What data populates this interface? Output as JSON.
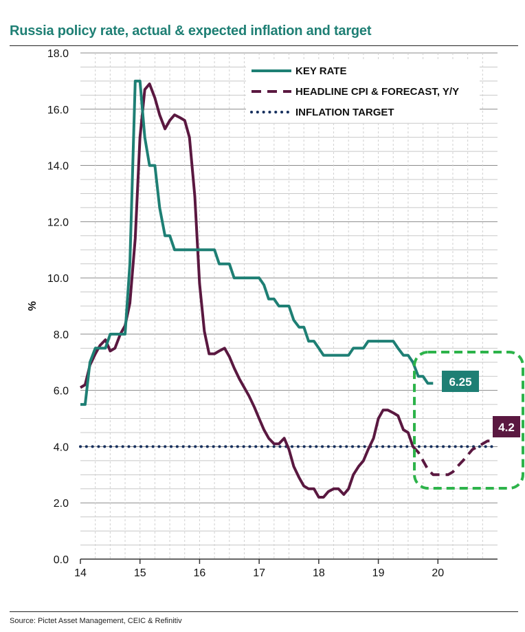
{
  "title": "Russia policy rate, actual & expected inflation and target",
  "source": "Source: Pictet Asset Management, CEIC & Refinitiv",
  "chart_data": {
    "type": "line",
    "title": "Russia policy rate, actual & expected inflation and target",
    "ylabel": "%",
    "xlabel": "",
    "ylim": [
      0,
      18
    ],
    "xlim": [
      14,
      21.0
    ],
    "yticks": [
      "0.0",
      "2.0",
      "4.0",
      "6.0",
      "8.0",
      "10.0",
      "12.0",
      "14.0",
      "16.0",
      "18.0"
    ],
    "xticks": [
      "14",
      "15",
      "16",
      "17",
      "18",
      "19",
      "20"
    ],
    "grid": true,
    "legend_position": "top-right",
    "colors": {
      "key_rate": "#1e7f74",
      "cpi": "#5a1840",
      "target": "#17305e",
      "highlight": "#2db34a"
    },
    "series": [
      {
        "name": "KEY RATE",
        "style": "solid",
        "x": [
          14.0,
          14.08,
          14.16,
          14.25,
          14.33,
          14.42,
          14.5,
          14.58,
          14.67,
          14.75,
          14.83,
          14.92,
          15.0,
          15.08,
          15.16,
          15.25,
          15.33,
          15.42,
          15.5,
          15.58,
          15.67,
          15.75,
          15.83,
          15.92,
          16.0,
          16.08,
          16.16,
          16.25,
          16.33,
          16.42,
          16.5,
          16.58,
          16.67,
          16.75,
          16.83,
          16.92,
          17.0,
          17.08,
          17.16,
          17.25,
          17.33,
          17.42,
          17.5,
          17.58,
          17.67,
          17.75,
          17.83,
          17.92,
          18.0,
          18.08,
          18.16,
          18.25,
          18.33,
          18.42,
          18.5,
          18.58,
          18.67,
          18.75,
          18.83,
          18.92,
          19.0,
          19.08,
          19.16,
          19.25,
          19.33,
          19.42,
          19.5,
          19.58,
          19.67,
          19.75,
          19.83,
          19.92
        ],
        "values": [
          5.5,
          5.5,
          7.0,
          7.5,
          7.5,
          7.5,
          8.0,
          8.0,
          8.0,
          8.0,
          10.5,
          17.0,
          17.0,
          15.0,
          14.0,
          14.0,
          12.5,
          11.5,
          11.5,
          11.0,
          11.0,
          11.0,
          11.0,
          11.0,
          11.0,
          11.0,
          11.0,
          11.0,
          10.5,
          10.5,
          10.5,
          10.0,
          10.0,
          10.0,
          10.0,
          10.0,
          10.0,
          9.75,
          9.25,
          9.25,
          9.0,
          9.0,
          9.0,
          8.5,
          8.25,
          8.25,
          7.75,
          7.75,
          7.5,
          7.25,
          7.25,
          7.25,
          7.25,
          7.25,
          7.25,
          7.5,
          7.5,
          7.5,
          7.75,
          7.75,
          7.75,
          7.75,
          7.75,
          7.75,
          7.5,
          7.25,
          7.25,
          7.0,
          6.5,
          6.5,
          6.25,
          6.25
        ]
      },
      {
        "name": "HEADLINE CPI & FORECAST, Y/Y",
        "style": "solid-then-dashed",
        "x": [
          14.0,
          14.08,
          14.16,
          14.25,
          14.33,
          14.42,
          14.5,
          14.58,
          14.67,
          14.75,
          14.83,
          14.92,
          15.0,
          15.08,
          15.16,
          15.25,
          15.33,
          15.42,
          15.5,
          15.58,
          15.67,
          15.75,
          15.83,
          15.92,
          16.0,
          16.08,
          16.16,
          16.25,
          16.33,
          16.42,
          16.5,
          16.58,
          16.67,
          16.75,
          16.83,
          16.92,
          17.0,
          17.08,
          17.16,
          17.25,
          17.33,
          17.42,
          17.5,
          17.58,
          17.67,
          17.75,
          17.83,
          17.92,
          18.0,
          18.08,
          18.16,
          18.25,
          18.33,
          18.42,
          18.5,
          18.58,
          18.67,
          18.75,
          18.83,
          18.92,
          19.0,
          19.08,
          19.16,
          19.25,
          19.33,
          19.42,
          19.5,
          19.58
        ],
        "values": [
          6.1,
          6.2,
          6.9,
          7.3,
          7.6,
          7.8,
          7.4,
          7.5,
          8.0,
          8.3,
          9.1,
          11.4,
          15.0,
          16.7,
          16.9,
          16.4,
          15.8,
          15.3,
          15.6,
          15.8,
          15.7,
          15.6,
          15.0,
          12.9,
          9.8,
          8.1,
          7.3,
          7.3,
          7.4,
          7.5,
          7.2,
          6.8,
          6.4,
          6.1,
          5.8,
          5.4,
          5.0,
          4.6,
          4.3,
          4.1,
          4.1,
          4.3,
          3.9,
          3.3,
          2.9,
          2.6,
          2.5,
          2.5,
          2.2,
          2.2,
          2.4,
          2.5,
          2.5,
          2.3,
          2.5,
          3.0,
          3.3,
          3.5,
          3.9,
          4.3,
          5.0,
          5.3,
          5.3,
          5.2,
          5.1,
          4.6,
          4.5,
          4.0
        ],
        "forecast_x": [
          19.58,
          19.67,
          19.75,
          19.83,
          19.92,
          20.0,
          20.08,
          20.17,
          20.25,
          20.33,
          20.42,
          20.5,
          20.58,
          20.67,
          20.75,
          20.83,
          20.92
        ],
        "forecast_values": [
          4.0,
          3.8,
          3.5,
          3.2,
          3.0,
          3.0,
          3.0,
          3.0,
          3.1,
          3.3,
          3.5,
          3.7,
          3.9,
          4.0,
          4.1,
          4.2,
          4.2
        ]
      },
      {
        "name": "INFLATION TARGET",
        "style": "dotted",
        "x": [
          14.0,
          20.92
        ],
        "values": [
          4.0,
          4.0
        ]
      }
    ],
    "annotations": [
      {
        "label": "6.25",
        "series": "KEY RATE"
      },
      {
        "label": "4.2",
        "series": "HEADLINE CPI & FORECAST, Y/Y"
      }
    ]
  }
}
